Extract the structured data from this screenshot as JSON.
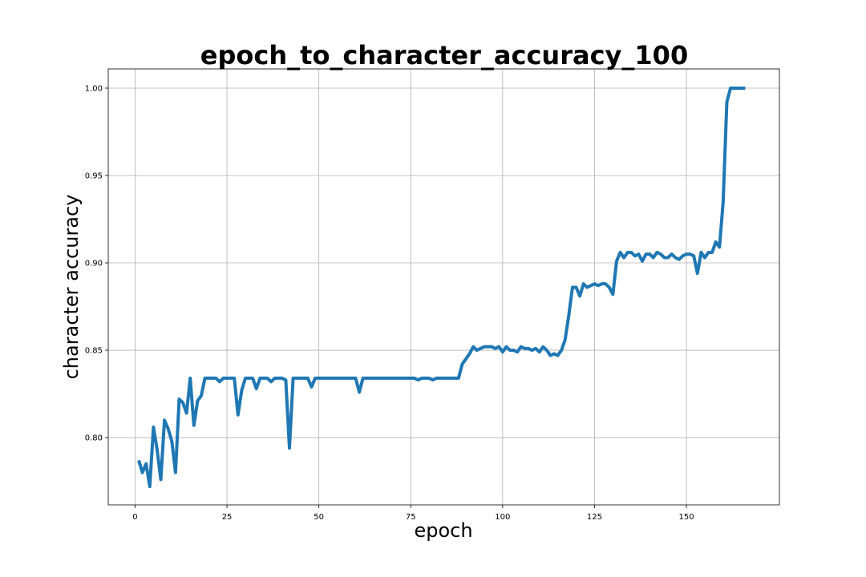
{
  "chart_data": {
    "type": "line",
    "title": "epoch_to_character_accuracy_100",
    "xlabel": "epoch",
    "ylabel": "character accuracy",
    "grid": true,
    "xlim": [
      -7.3,
      175.3
    ],
    "ylim": [
      0.7615,
      1.011
    ],
    "x_ticks": [
      0,
      25,
      50,
      75,
      100,
      125,
      150
    ],
    "x_tick_labels": [
      "0",
      "25",
      "50",
      "75",
      "100",
      "125",
      "150"
    ],
    "y_ticks": [
      0.8,
      0.85,
      0.9,
      0.95,
      1.0
    ],
    "y_tick_labels": [
      "0.80",
      "0.85",
      "0.90",
      "0.95",
      "1.00"
    ],
    "series": [
      {
        "color": "#1f77b4",
        "x": [
          1,
          2,
          3,
          4,
          5,
          6,
          7,
          8,
          9,
          10,
          11,
          12,
          13,
          14,
          15,
          16,
          17,
          18,
          19,
          20,
          21,
          22,
          23,
          24,
          25,
          26,
          27,
          28,
          29,
          30,
          31,
          32,
          33,
          34,
          35,
          36,
          37,
          38,
          39,
          40,
          41,
          42,
          43,
          44,
          45,
          46,
          47,
          48,
          49,
          50,
          51,
          52,
          53,
          54,
          55,
          56,
          57,
          58,
          59,
          60,
          61,
          62,
          63,
          64,
          65,
          66,
          67,
          68,
          69,
          70,
          71,
          72,
          73,
          74,
          75,
          76,
          77,
          78,
          79,
          80,
          81,
          82,
          83,
          84,
          85,
          86,
          87,
          88,
          89,
          90,
          91,
          92,
          93,
          94,
          95,
          96,
          97,
          98,
          99,
          100,
          101,
          102,
          103,
          104,
          105,
          106,
          107,
          108,
          109,
          110,
          111,
          112,
          113,
          114,
          115,
          116,
          117,
          118,
          119,
          120,
          121,
          122,
          123,
          124,
          125,
          126,
          127,
          128,
          129,
          130,
          131,
          132,
          133,
          134,
          135,
          136,
          137,
          138,
          139,
          140,
          141,
          142,
          143,
          144,
          145,
          146,
          147,
          148,
          149,
          150,
          151,
          152,
          153,
          154,
          155,
          156,
          157,
          158,
          159,
          160,
          161,
          162,
          163,
          164,
          165,
          166
        ],
        "y": [
          0.787,
          0.78,
          0.785,
          0.772,
          0.806,
          0.793,
          0.776,
          0.81,
          0.805,
          0.798,
          0.78,
          0.822,
          0.82,
          0.814,
          0.834,
          0.807,
          0.821,
          0.824,
          0.834,
          0.834,
          0.834,
          0.834,
          0.832,
          0.834,
          0.834,
          0.834,
          0.834,
          0.813,
          0.827,
          0.834,
          0.834,
          0.834,
          0.828,
          0.834,
          0.834,
          0.834,
          0.832,
          0.834,
          0.834,
          0.834,
          0.833,
          0.794,
          0.834,
          0.834,
          0.834,
          0.834,
          0.834,
          0.829,
          0.834,
          0.834,
          0.834,
          0.834,
          0.834,
          0.834,
          0.834,
          0.834,
          0.834,
          0.834,
          0.834,
          0.834,
          0.826,
          0.834,
          0.834,
          0.834,
          0.834,
          0.834,
          0.834,
          0.834,
          0.834,
          0.834,
          0.834,
          0.834,
          0.834,
          0.834,
          0.834,
          0.834,
          0.833,
          0.834,
          0.834,
          0.834,
          0.833,
          0.834,
          0.834,
          0.834,
          0.834,
          0.834,
          0.834,
          0.834,
          0.842,
          0.845,
          0.848,
          0.852,
          0.85,
          0.851,
          0.852,
          0.852,
          0.852,
          0.851,
          0.852,
          0.849,
          0.852,
          0.85,
          0.85,
          0.849,
          0.852,
          0.851,
          0.851,
          0.85,
          0.851,
          0.849,
          0.852,
          0.85,
          0.847,
          0.848,
          0.847,
          0.85,
          0.856,
          0.87,
          0.886,
          0.886,
          0.881,
          0.888,
          0.886,
          0.887,
          0.888,
          0.887,
          0.888,
          0.888,
          0.886,
          0.882,
          0.901,
          0.906,
          0.903,
          0.906,
          0.906,
          0.904,
          0.905,
          0.901,
          0.905,
          0.905,
          0.903,
          0.906,
          0.905,
          0.903,
          0.903,
          0.905,
          0.903,
          0.902,
          0.904,
          0.905,
          0.905,
          0.904,
          0.894,
          0.906,
          0.903,
          0.906,
          0.906,
          0.912,
          0.909,
          0.935,
          0.992,
          1.0,
          1.0,
          1.0,
          1.0,
          1.0
        ]
      }
    ]
  }
}
